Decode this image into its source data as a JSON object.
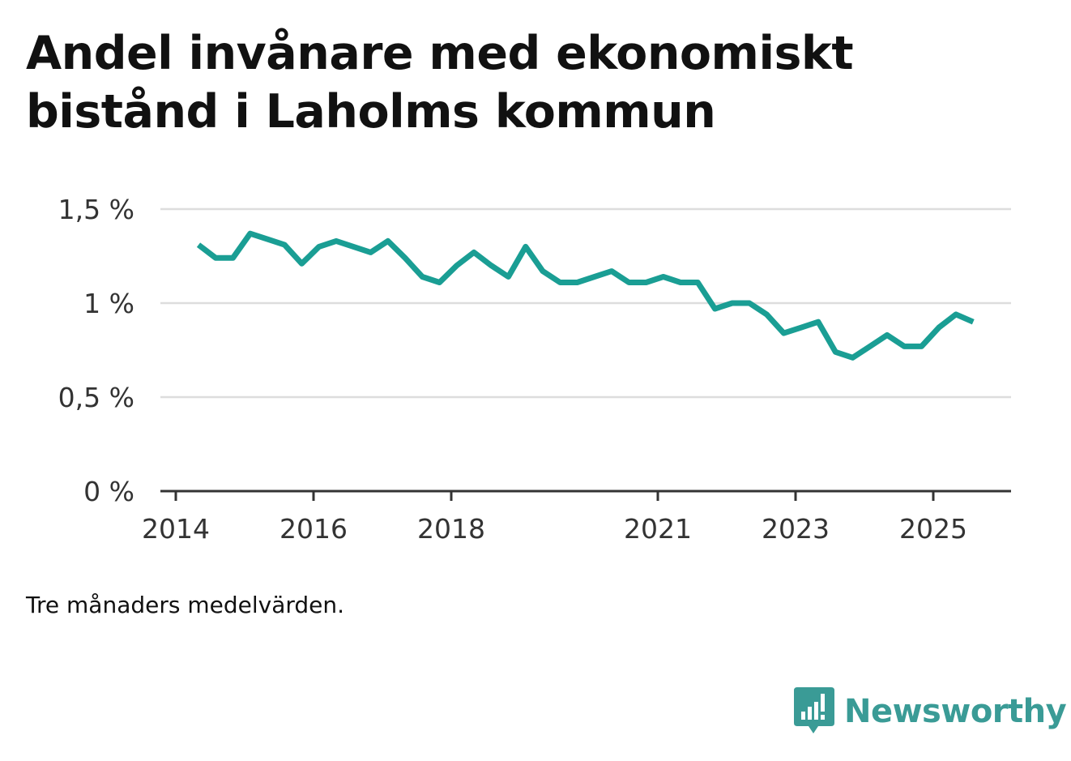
{
  "title_lines": [
    "Andel invånare med ekonomiskt",
    "bistånd i Laholms kommun"
  ],
  "note": "Tre månaders medelvärden.",
  "brand": {
    "name": "Newsworthy",
    "icon": "newsworthy-logo-icon",
    "color": "#3a9b96"
  },
  "chart_data": {
    "type": "line",
    "title": "Andel invånare med ekonomiskt bistånd i Laholms kommun",
    "xlabel": "",
    "ylabel": "",
    "ylim": [
      0,
      1.5
    ],
    "xlim": [
      2014.0,
      2026.2
    ],
    "grid": true,
    "line_color": "#1a9e94",
    "yticks": [
      {
        "value": 0,
        "label": "0 %"
      },
      {
        "value": 0.5,
        "label": "0,5 %"
      },
      {
        "value": 1,
        "label": "1 %"
      },
      {
        "value": 1.5,
        "label": "1,5 %"
      }
    ],
    "xticks": [
      {
        "value": 2014,
        "label": "2014"
      },
      {
        "value": 2016,
        "label": "2016"
      },
      {
        "value": 2018,
        "label": "2018"
      },
      {
        "value": 2021,
        "label": "2021"
      },
      {
        "value": 2023,
        "label": "2023"
      },
      {
        "value": 2025,
        "label": "2025"
      }
    ],
    "series": [
      {
        "name": "Andel invånare med ekonomiskt bistånd",
        "x": [
          2014.33,
          2014.58,
          2014.83,
          2015.08,
          2015.33,
          2015.58,
          2015.83,
          2016.08,
          2016.33,
          2016.58,
          2016.83,
          2017.08,
          2017.33,
          2017.58,
          2017.83,
          2018.08,
          2018.33,
          2018.58,
          2018.83,
          2019.08,
          2019.33,
          2019.58,
          2019.83,
          2020.08,
          2020.33,
          2020.58,
          2020.83,
          2021.08,
          2021.33,
          2021.58,
          2021.83,
          2022.08,
          2022.33,
          2022.58,
          2022.83,
          2023.08,
          2023.33,
          2023.58,
          2023.83,
          2024.08,
          2024.33,
          2024.58,
          2024.83,
          2025.08,
          2025.33,
          2025.58
        ],
        "values": [
          1.31,
          1.24,
          1.24,
          1.37,
          1.34,
          1.31,
          1.21,
          1.3,
          1.33,
          1.3,
          1.27,
          1.33,
          1.24,
          1.14,
          1.11,
          1.2,
          1.27,
          1.2,
          1.14,
          1.3,
          1.17,
          1.11,
          1.11,
          1.14,
          1.17,
          1.11,
          1.11,
          1.14,
          1.11,
          1.11,
          0.97,
          1.0,
          1.0,
          0.94,
          0.84,
          0.87,
          0.9,
          0.74,
          0.71,
          0.77,
          0.83,
          0.77,
          0.77,
          0.87,
          0.94,
          0.9
        ]
      }
    ]
  }
}
